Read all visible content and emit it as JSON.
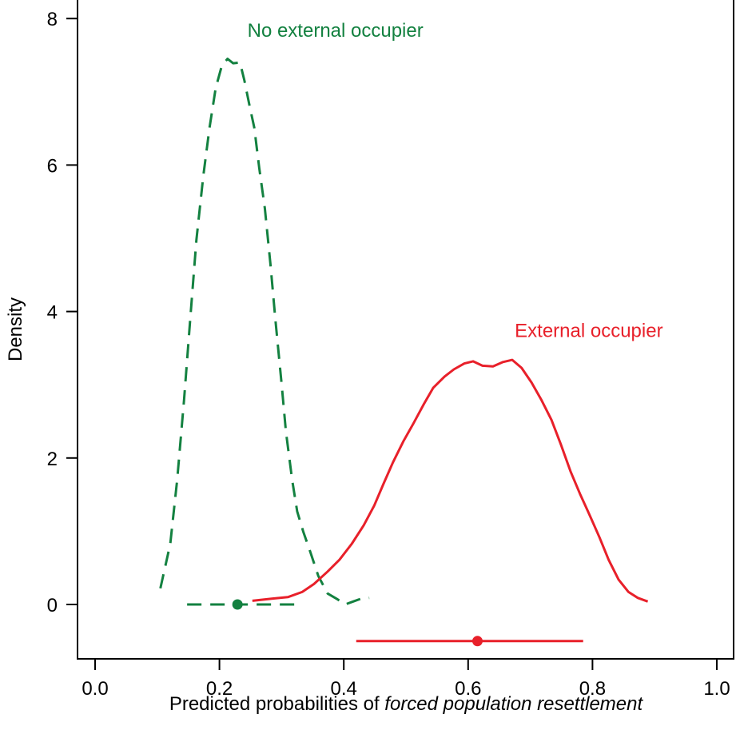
{
  "chart_data": {
    "type": "line",
    "title": "",
    "xlabel_prefix": "Predicted probabilities of ",
    "xlabel_italic": "forced population resettlement",
    "xlabel": "Predicted probabilities of forced population resettlement",
    "ylabel": "Density",
    "xlim": [
      -0.03,
      1.025
    ],
    "ylim": [
      -0.74,
      8.25
    ],
    "x_ticks": [
      0.0,
      0.2,
      0.4,
      0.6,
      0.8,
      1.0
    ],
    "x_tick_labels": [
      "0.0",
      "0.2",
      "0.4",
      "0.6",
      "0.8",
      "1.0"
    ],
    "y_ticks": [
      0,
      2,
      4,
      6,
      8
    ],
    "y_tick_labels": [
      "0",
      "2",
      "4",
      "6",
      "8"
    ],
    "grid": false,
    "legend": "direct labels",
    "series": [
      {
        "name": "No external occupier",
        "color": "#138140",
        "line_style": "dashed",
        "label_position": {
          "x": 0.245,
          "y": 7.75
        },
        "x": [
          0.105,
          0.121,
          0.132,
          0.143,
          0.153,
          0.163,
          0.174,
          0.184,
          0.194,
          0.204,
          0.213,
          0.222,
          0.233,
          0.24,
          0.248,
          0.256,
          0.264,
          0.273,
          0.282,
          0.29,
          0.3,
          0.307,
          0.317,
          0.325,
          0.335,
          0.346,
          0.359,
          0.374,
          0.39,
          0.402,
          0.415,
          0.428,
          0.441
        ],
        "y": [
          0.22,
          0.83,
          1.7,
          2.79,
          3.89,
          4.98,
          5.85,
          6.51,
          7.05,
          7.36,
          7.45,
          7.39,
          7.4,
          7.16,
          6.83,
          6.51,
          5.96,
          5.41,
          4.65,
          3.89,
          3.01,
          2.36,
          1.7,
          1.27,
          0.99,
          0.72,
          0.39,
          0.15,
          0.07,
          0.0,
          0.04,
          0.08,
          0.09
        ],
        "interval": {
          "low": 0.148,
          "high": 0.322,
          "point": 0.229,
          "y": 0.0,
          "line_style": "dashed"
        }
      },
      {
        "name": "External occupier",
        "color": "#e8202a",
        "line_style": "solid",
        "label_position": {
          "x": 0.675,
          "y": 3.65
        },
        "x": [
          0.253,
          0.284,
          0.31,
          0.333,
          0.352,
          0.374,
          0.393,
          0.413,
          0.432,
          0.449,
          0.464,
          0.479,
          0.496,
          0.512,
          0.529,
          0.544,
          0.562,
          0.577,
          0.594,
          0.608,
          0.623,
          0.64,
          0.656,
          0.671,
          0.686,
          0.702,
          0.718,
          0.734,
          0.749,
          0.765,
          0.78,
          0.796,
          0.811,
          0.826,
          0.842,
          0.858,
          0.873,
          0.889
        ],
        "y": [
          0.05,
          0.08,
          0.1,
          0.17,
          0.28,
          0.45,
          0.61,
          0.83,
          1.08,
          1.35,
          1.65,
          1.94,
          2.23,
          2.47,
          2.74,
          2.96,
          3.11,
          3.21,
          3.29,
          3.32,
          3.26,
          3.25,
          3.31,
          3.34,
          3.23,
          3.03,
          2.79,
          2.52,
          2.19,
          1.81,
          1.51,
          1.21,
          0.92,
          0.61,
          0.34,
          0.17,
          0.09,
          0.04
        ],
        "interval": {
          "low": 0.42,
          "high": 0.785,
          "point": 0.615,
          "y": -0.5,
          "line_style": "solid"
        }
      }
    ]
  }
}
